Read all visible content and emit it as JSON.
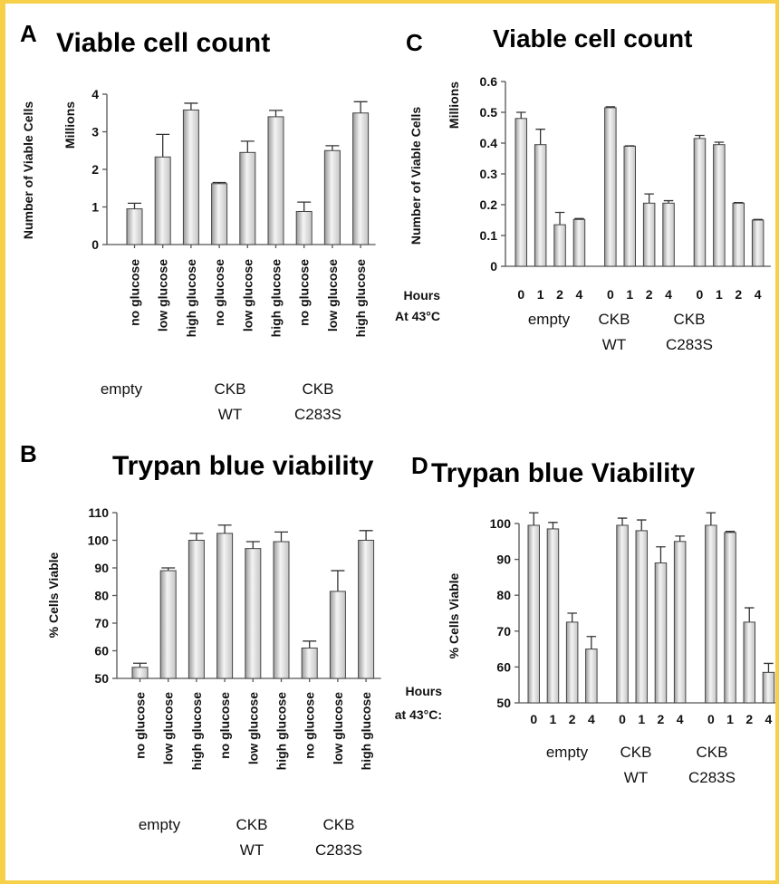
{
  "chart_data": [
    {
      "panel": "A",
      "type": "bar",
      "title": "Viable cell count",
      "ylabel": "Number of Viable Cells",
      "yunit": "Millions",
      "ylim": [
        0,
        4
      ],
      "yticks": [
        0,
        1,
        2,
        3,
        4
      ],
      "categories": [
        "no glucose",
        "low glucose",
        "high glucose",
        "no glucose",
        "low glucose",
        "high glucose",
        "no glucose",
        "low glucose",
        "high glucose"
      ],
      "values": [
        0.95,
        2.33,
        3.58,
        1.62,
        2.45,
        3.4,
        0.88,
        2.5,
        3.5
      ],
      "errors": [
        0.15,
        0.6,
        0.18,
        0.03,
        0.3,
        0.17,
        0.25,
        0.13,
        0.3
      ],
      "groups": [
        {
          "label": "empty",
          "label2": ""
        },
        {
          "label": "CKB",
          "label2": "WT"
        },
        {
          "label": "CKB",
          "label2": "C283S"
        }
      ]
    },
    {
      "panel": "B",
      "type": "bar",
      "title": "Trypan blue viability",
      "ylabel": "% Cells Viable",
      "ylim": [
        50,
        110
      ],
      "yticks": [
        50,
        60,
        70,
        80,
        90,
        100,
        110
      ],
      "categories": [
        "no glucose",
        "low glucose",
        "high glucose",
        "no glucose",
        "low glucose",
        "high glucose",
        "no glucose",
        "low glucose",
        "high glucose"
      ],
      "values": [
        54,
        89,
        100,
        102.5,
        97,
        99.5,
        61,
        81.5,
        100
      ],
      "errors": [
        1.5,
        1,
        2.5,
        3,
        2.5,
        3.5,
        2.5,
        7.5,
        3.5
      ],
      "groups": [
        {
          "label": "empty",
          "label2": ""
        },
        {
          "label": "CKB",
          "label2": "WT"
        },
        {
          "label": "CKB",
          "label2": "C283S"
        }
      ]
    },
    {
      "panel": "C",
      "type": "bar",
      "title": "Viable cell count",
      "ylabel": "Number of Viable Cells",
      "yunit": "Millions",
      "ylim": [
        0,
        0.6
      ],
      "yticks": [
        "0",
        "0.1",
        "0.2",
        "0.3",
        "0.4",
        "0.5",
        "0.6"
      ],
      "xlabel_line1": "Hours",
      "xlabel_line2": "At 43°C",
      "categories": [
        "0",
        "1",
        "2",
        "4",
        "0",
        "1",
        "2",
        "4",
        "0",
        "1",
        "2",
        "4"
      ],
      "values": [
        0.48,
        0.395,
        0.135,
        0.152,
        0.515,
        0.39,
        0.205,
        0.205,
        0.415,
        0.395,
        0.205,
        0.15
      ],
      "errors": [
        0.02,
        0.05,
        0.04,
        0.003,
        0.003,
        0.001,
        0.03,
        0.008,
        0.01,
        0.008,
        0.002,
        0.002
      ],
      "groups": [
        {
          "label": "empty",
          "label2": ""
        },
        {
          "label": "CKB",
          "label2": "WT"
        },
        {
          "label": "CKB",
          "label2": "C283S"
        }
      ]
    },
    {
      "panel": "D",
      "type": "bar",
      "title": "Trypan blue Viability",
      "ylabel": "% Cells Viable",
      "ylim": [
        50,
        100
      ],
      "yticks": [
        50,
        60,
        70,
        80,
        90,
        100
      ],
      "xlabel_line1": "Hours",
      "xlabel_line2": "at 43°C:",
      "categories": [
        "0",
        "1",
        "2",
        "4",
        "0",
        "1",
        "2",
        "4",
        "0",
        "1",
        "2",
        "4"
      ],
      "values": [
        99.5,
        98.5,
        72.5,
        65,
        99.5,
        98,
        89,
        95,
        99.5,
        97.5,
        72.5,
        58.5
      ],
      "errors": [
        3.5,
        1.8,
        2.5,
        3.5,
        2,
        3,
        4.5,
        1.5,
        3.5,
        0.3,
        4,
        2.5
      ],
      "groups": [
        {
          "label": "empty",
          "label2": ""
        },
        {
          "label": "CKB",
          "label2": "WT"
        },
        {
          "label": "CKB",
          "label2": "C283S"
        }
      ]
    }
  ]
}
